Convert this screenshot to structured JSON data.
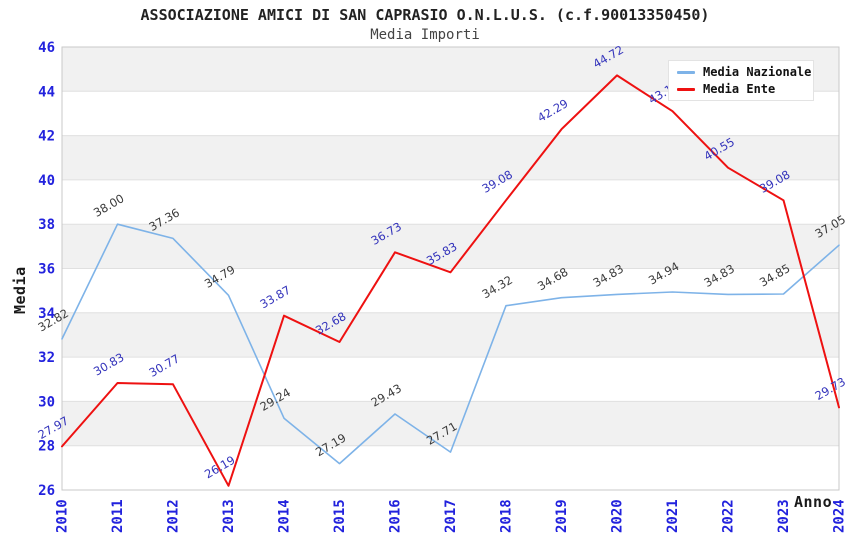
{
  "chart_data": {
    "type": "line",
    "title": "ASSOCIAZIONE AMICI DI SAN CAPRASIO O.N.L.U.S. (c.f.90013350450)",
    "subtitle": "Media Importi",
    "xlabel": "Anno",
    "ylabel": "Media",
    "ylim": [
      26,
      46
    ],
    "y_tick_step": 2,
    "y_tick_labels": [
      "46",
      "44",
      "42",
      "40",
      "38",
      "36",
      "34",
      "32",
      "30",
      "28",
      "26"
    ],
    "categories": [
      "2010",
      "2011",
      "2012",
      "2013",
      "2014",
      "2015",
      "2016",
      "2017",
      "2018",
      "2019",
      "2020",
      "2021",
      "2022",
      "2023",
      "2024"
    ],
    "grid": "alternating-horizontal-bands",
    "legend_position": "top-right",
    "series": [
      {
        "name": "Media Nazionale",
        "color": "#7eb3e8",
        "label_color": "#3a3a3a",
        "values": [
          32.82,
          38.0,
          37.36,
          34.79,
          29.24,
          27.19,
          29.43,
          27.71,
          34.32,
          34.68,
          34.83,
          34.94,
          34.83,
          34.85,
          37.05
        ],
        "point_labels": [
          "32.82",
          "38.00",
          "37.36",
          "34.79",
          "29.24",
          "27.19",
          "29.43",
          "27.71",
          "34.32",
          "34.68",
          "34.83",
          "34.94",
          "34.83",
          "34.85",
          "37.05"
        ]
      },
      {
        "name": "Media Ente",
        "color": "#ee1111",
        "label_color": "#3333bb",
        "values": [
          27.97,
          30.83,
          30.77,
          26.19,
          33.87,
          32.68,
          36.73,
          35.83,
          39.08,
          42.29,
          44.72,
          43.1,
          40.55,
          39.08,
          29.73
        ],
        "point_labels": [
          "27.97",
          "30.83",
          "30.77",
          "26.19",
          "33.87",
          "32.68",
          "36.73",
          "35.83",
          "39.08",
          "42.29",
          "44.72",
          "43.1",
          "40.55",
          "39.08",
          "29.73"
        ]
      }
    ],
    "colors": {
      "tick_label": "#2222dd",
      "band": "#f1f1f1",
      "gridline": "#e0e0e0",
      "plot_border": "#c9c9c9",
      "axis_title": "#1a1a1a",
      "title": "#222222",
      "subtitle": "#444444"
    }
  }
}
